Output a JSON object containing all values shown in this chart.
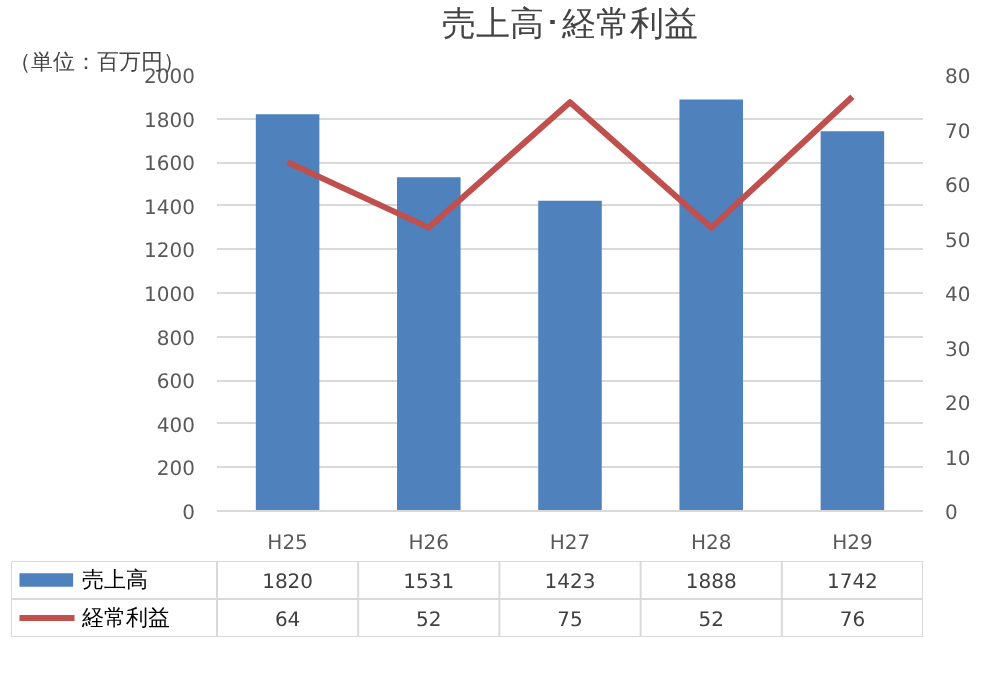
{
  "chart_data": {
    "type": "bar",
    "title": "売上高･経常利益",
    "annotations": [
      "（単位：百万円）"
    ],
    "categories": [
      "H25",
      "H26",
      "H27",
      "H28",
      "H29"
    ],
    "series": [
      {
        "name": "売上高",
        "color": "#4f81bd",
        "values": [
          1820,
          1531,
          1423,
          1888,
          1742
        ]
      },
      {
        "name": "経常利益",
        "type": "line",
        "axis": "y2",
        "color": "#c0504d",
        "values": [
          64,
          52,
          75,
          52,
          76
        ]
      }
    ],
    "ylim": [
      0,
      2000
    ],
    "yticks": [
      0,
      200,
      400,
      600,
      800,
      1000,
      1200,
      1400,
      1600,
      1800,
      2000
    ],
    "y2lim": [
      0,
      80
    ],
    "y2ticks": [
      0,
      10,
      20,
      30,
      40,
      50,
      60,
      70,
      80
    ],
    "grid": "y",
    "legend": "bottom",
    "data_labels": true,
    "marker": "none",
    "line_style": "solid"
  }
}
